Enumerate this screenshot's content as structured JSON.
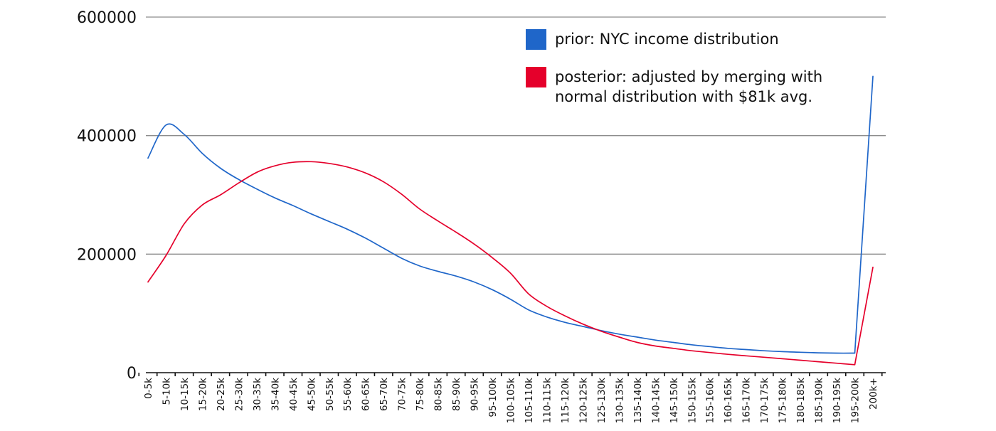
{
  "chart_data": {
    "type": "line",
    "title": "",
    "xlabel": "",
    "ylabel": "",
    "ylim": [
      0,
      600000
    ],
    "yticks": [
      "0",
      "200000",
      "400000",
      "600000"
    ],
    "ytick_values": [
      0,
      200000,
      400000,
      600000
    ],
    "grid": true,
    "legend_position": "top-right",
    "categories": [
      "0-5k",
      "5-10k",
      "10-15k",
      "15-20k",
      "20-25k",
      "25-30k",
      "30-35k",
      "35-40k",
      "40-45k",
      "45-50k",
      "50-55k",
      "55-60k",
      "60-65k",
      "65-70k",
      "70-75k",
      "75-80k",
      "80-85k",
      "85-90k",
      "90-95k",
      "95-100k",
      "100-105k",
      "105-110k",
      "110-115k",
      "115-120k",
      "120-125k",
      "125-130k",
      "130-135k",
      "135-140k",
      "140-145k",
      "145-150k",
      "150-155k",
      "155-160k",
      "160-165k",
      "165-170k",
      "170-175k",
      "175-180k",
      "180-185k",
      "185-190k",
      "190-195k",
      "195-200k",
      "200k+"
    ],
    "series": [
      {
        "name": "prior: NYC income distribution",
        "color": "#1f66c9",
        "values": [
          362000,
          418000,
          402000,
          370000,
          345000,
          326000,
          310000,
          295000,
          282000,
          268000,
          255000,
          242000,
          227000,
          210000,
          193000,
          180000,
          171000,
          163000,
          153000,
          140000,
          124000,
          106000,
          94000,
          85000,
          78000,
          71000,
          65000,
          60000,
          55000,
          51000,
          47000,
          44000,
          41000,
          39000,
          37000,
          35500,
          34500,
          33500,
          33000,
          33000,
          500000
        ]
      },
      {
        "name": "posterior: adjusted by merging with normal distribution with $81k avg.",
        "color": "#e5002b",
        "values": [
          153000,
          198000,
          251000,
          283000,
          300000,
          320000,
          338000,
          349000,
          355000,
          356000,
          353000,
          347000,
          337000,
          322000,
          301000,
          276000,
          256000,
          237000,
          217000,
          194000,
          168000,
          133000,
          112000,
          96000,
          82000,
          70000,
          60000,
          51000,
          45000,
          41000,
          37000,
          34000,
          31000,
          28500,
          26000,
          23500,
          21000,
          18500,
          16000,
          13500,
          178000
        ]
      }
    ]
  }
}
